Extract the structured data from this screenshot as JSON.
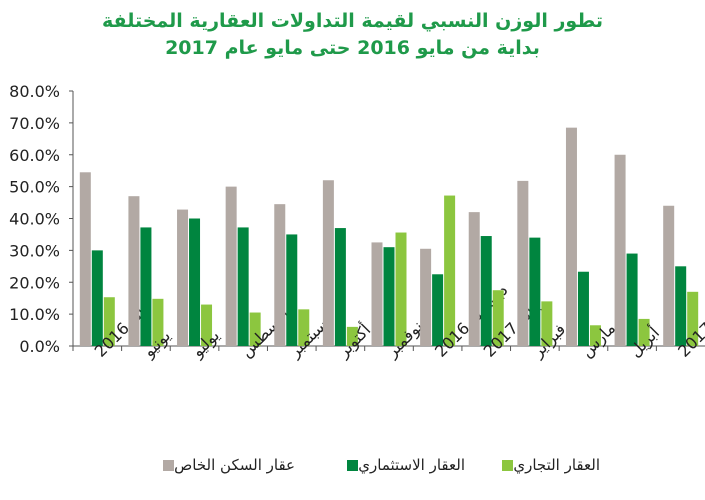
{
  "chart_data": {
    "type": "bar",
    "title": [
      "تطور الوزن النسبي لقيمة التداولات العقارية المختلفة",
      "بداية من مايو 2016 حتى مايو عام 2017"
    ],
    "categories": [
      "مايو 2016",
      "يونيو",
      "يوليو",
      "أغسطس",
      "سبتمبر",
      "أكتوبر",
      "نوفمبر",
      "ديسمبر 2016",
      "يناير 2017",
      "فبراير",
      "مارس",
      "أبريل",
      "مايو 2017"
    ],
    "series": [
      {
        "name": "عقار السكن الخاص",
        "color": "#b2a9a4",
        "values": [
          54.5,
          47.0,
          42.8,
          50.0,
          44.5,
          52.0,
          32.5,
          30.5,
          42.0,
          51.8,
          68.5,
          60.0,
          44.0
        ]
      },
      {
        "name": "العقار الاستثماري",
        "color": "#00853f",
        "values": [
          30.0,
          37.2,
          40.0,
          37.2,
          35.0,
          37.0,
          31.0,
          22.5,
          34.5,
          34.0,
          23.3,
          29.0,
          25.0
        ]
      },
      {
        "name": "العقار التجاري",
        "color": "#8cc63f",
        "values": [
          15.3,
          14.8,
          13.0,
          10.5,
          11.5,
          6.0,
          35.6,
          47.2,
          17.5,
          14.0,
          6.5,
          8.5,
          17.0
        ]
      }
    ],
    "ylim": [
      0,
      80
    ],
    "yticks": [
      "0.0%",
      "10.0%",
      "20.0%",
      "30.0%",
      "40.0%",
      "50.0%",
      "60.0%",
      "70.0%",
      "80.0%"
    ],
    "grid": false,
    "legend_position": "bottom"
  }
}
